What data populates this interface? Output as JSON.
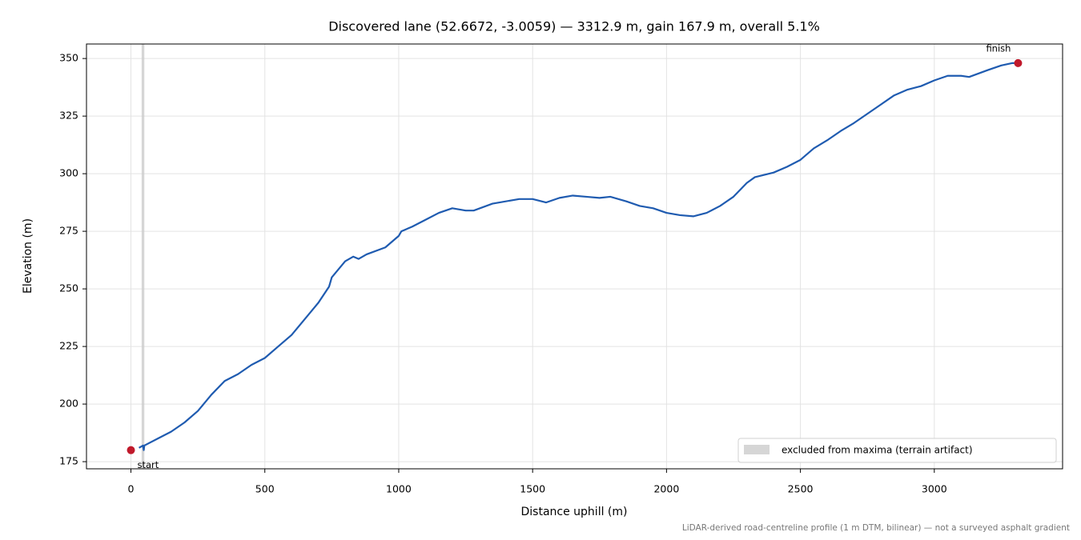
{
  "chart_data": {
    "type": "line",
    "title": "Discovered lane (52.6672, -3.0059) — 3312.9 m, gain 167.9 m, overall 5.1%",
    "x_label": "Distance uphill (m)",
    "y_label": "Elevation (m)",
    "note": "LiDAR-derived road-centreline profile (1 m DTM, bilinear) — not a surveyed asphalt gradient",
    "color": "#1f5bb0",
    "x": [
      30,
      45,
      48,
      50,
      100,
      150,
      200,
      250,
      300,
      350,
      400,
      450,
      500,
      550,
      600,
      650,
      700,
      740,
      750,
      800,
      830,
      850,
      880,
      950,
      1000,
      1010,
      1050,
      1100,
      1150,
      1200,
      1250,
      1280,
      1350,
      1450,
      1500,
      1550,
      1600,
      1650,
      1700,
      1750,
      1790,
      1850,
      1900,
      1950,
      2000,
      2050,
      2100,
      2150,
      2200,
      2250,
      2300,
      2330,
      2400,
      2450,
      2500,
      2550,
      2600,
      2650,
      2700,
      2750,
      2800,
      2850,
      2900,
      2950,
      3000,
      3050,
      3100,
      3130,
      3200,
      3250,
      3290,
      3313
    ],
    "values": [
      181,
      182,
      180,
      182,
      185,
      188,
      192,
      197,
      204,
      210,
      213,
      217,
      220,
      225,
      230,
      237,
      244,
      251,
      255,
      262,
      264,
      263,
      265,
      268,
      273,
      275,
      277,
      280,
      283,
      285,
      284,
      284,
      287,
      289,
      289,
      287.5,
      289.5,
      290.5,
      290,
      289.5,
      290,
      288,
      286,
      285,
      283,
      282,
      281.5,
      283,
      286,
      290,
      296,
      298.5,
      300.5,
      303,
      306,
      311,
      314.5,
      318.5,
      322,
      326,
      330,
      334,
      336.5,
      338,
      340.5,
      342.5,
      342.5,
      342,
      345,
      347,
      348,
      348
    ],
    "markers": [
      {
        "label": "start",
        "x": 0,
        "y": 180,
        "color": "#c0192b"
      },
      {
        "label": "finish",
        "x": 3312.9,
        "y": 348,
        "color": "#c0192b"
      }
    ],
    "excluded": {
      "label": "excluded from maxima (terrain artifact)",
      "x": [
        40,
        50
      ],
      "color": "#cccccc"
    },
    "legend": "lower right",
    "grid": true,
    "xlim": [
      -166,
      3479
    ],
    "ylim": [
      171.9,
      356.3
    ],
    "xticks": [
      0,
      500,
      1000,
      1500,
      2000,
      2500,
      3000
    ],
    "yticks": [
      175,
      200,
      225,
      250,
      275,
      300,
      325,
      350
    ]
  }
}
